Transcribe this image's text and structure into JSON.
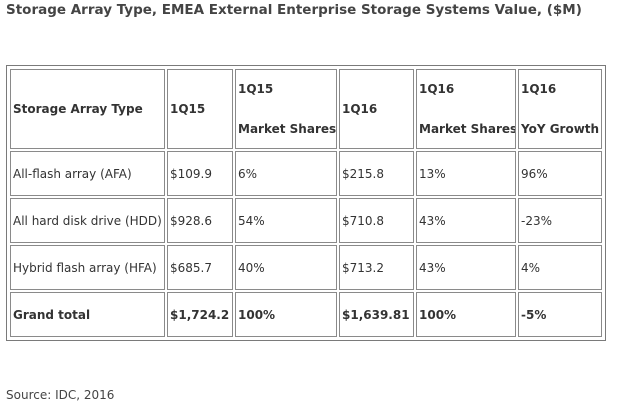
{
  "title": "Storage Array Type, EMEA External Enterprise Storage Systems Value, ($M)",
  "table": {
    "headers": {
      "type": "Storage Array Type",
      "q15": "1Q15",
      "q15_share_top": "1Q15",
      "q15_share_bottom": "Market Shares",
      "q16": "1Q16",
      "q16_share_top": "1Q16",
      "q16_share_bottom": "Market Shares",
      "yoy_top": "1Q16",
      "yoy_bottom": "YoY Growth"
    },
    "rows": [
      [
        "All-flash array (AFA)",
        "$109.9",
        "6%",
        "$215.8",
        "13%",
        "96%"
      ],
      [
        "All hard disk drive (HDD)",
        "$928.6",
        "54%",
        "$710.8",
        "43%",
        "-23%"
      ],
      [
        "Hybrid flash array (HFA)",
        "$685.7",
        "40%",
        "$713.2",
        "43%",
        "4%"
      ]
    ],
    "total": [
      "Grand total",
      "$1,724.2",
      "100%",
      "$1,639.81",
      "100%",
      "-5%"
    ]
  },
  "source": "Source: IDC, 2016"
}
